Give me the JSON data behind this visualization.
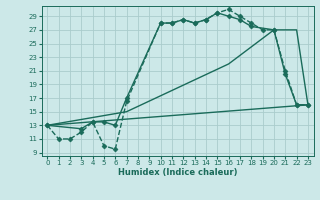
{
  "xlabel": "Humidex (Indice chaleur)",
  "bg_color": "#cce8e8",
  "grid_color": "#aacccc",
  "line_color": "#1a6b5a",
  "xlim": [
    -0.5,
    23.5
  ],
  "ylim": [
    8.5,
    30.5
  ],
  "yticks": [
    9,
    11,
    13,
    15,
    17,
    19,
    21,
    23,
    25,
    27,
    29
  ],
  "xticks": [
    0,
    1,
    2,
    3,
    4,
    5,
    6,
    7,
    8,
    9,
    10,
    11,
    12,
    13,
    14,
    15,
    16,
    17,
    18,
    19,
    20,
    21,
    22,
    23
  ],
  "series": [
    {
      "x": [
        0,
        1,
        2,
        3,
        4,
        5,
        6,
        7,
        10,
        11,
        12,
        13,
        14,
        15,
        16,
        17,
        18,
        19,
        20,
        21,
        22,
        23
      ],
      "y": [
        13,
        11,
        11,
        12,
        13.5,
        10,
        9.5,
        16.5,
        28,
        28,
        28.5,
        28,
        28.5,
        29.5,
        30,
        29,
        28,
        27,
        27,
        21,
        16,
        16
      ],
      "linestyle": "--",
      "marker": "D",
      "markersize": 2.5,
      "linewidth": 1.0
    },
    {
      "x": [
        0,
        3,
        4,
        5,
        6,
        7,
        10,
        11,
        12,
        13,
        14,
        15,
        16,
        17,
        18,
        20,
        21,
        22,
        23
      ],
      "y": [
        13,
        12.5,
        13.5,
        13.5,
        13,
        17,
        28,
        28,
        28.5,
        28,
        28.5,
        29.5,
        29,
        28.5,
        27.5,
        27,
        20.5,
        16,
        16
      ],
      "linestyle": "-",
      "marker": "D",
      "markersize": 2.5,
      "linewidth": 1.0
    },
    {
      "x": [
        0,
        23
      ],
      "y": [
        13,
        16
      ],
      "linestyle": "-",
      "marker": null,
      "markersize": 0,
      "linewidth": 1.0
    },
    {
      "x": [
        0,
        7,
        16,
        20,
        22,
        23
      ],
      "y": [
        13,
        15,
        22,
        27,
        27,
        16
      ],
      "linestyle": "-",
      "marker": null,
      "markersize": 0,
      "linewidth": 1.0
    }
  ]
}
